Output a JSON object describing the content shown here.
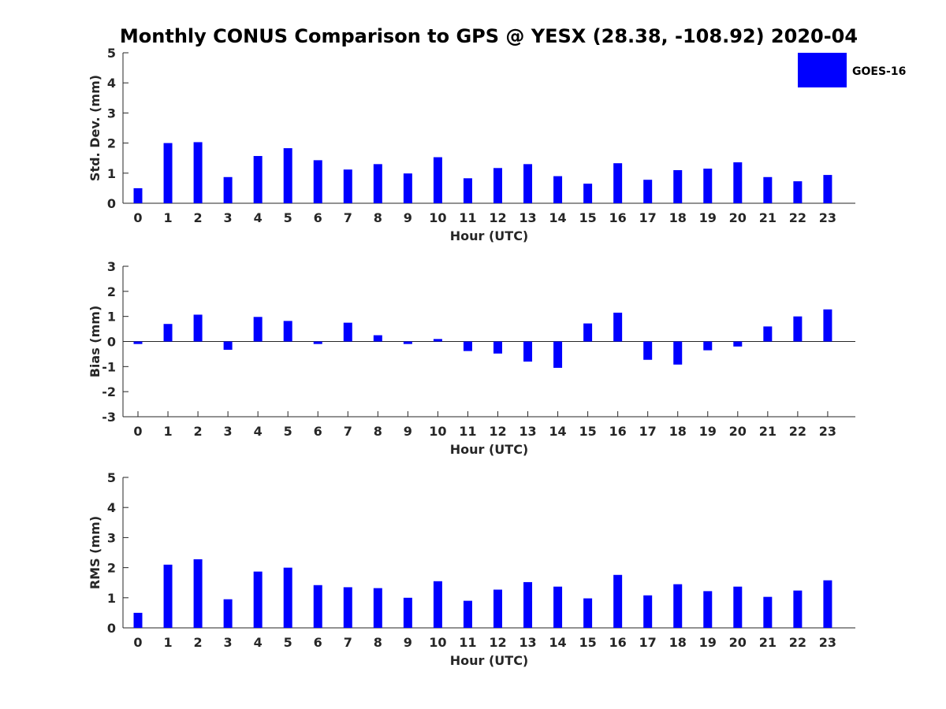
{
  "chart_data": {
    "type": "bar",
    "title": "Monthly CONUS Comparison to GPS @ YESX (28.38, -108.92) 2020-04",
    "legend": {
      "labels": [
        "GOES-16"
      ],
      "color": "#0000ff",
      "position": "top-right"
    },
    "categories": [
      "0",
      "1",
      "2",
      "3",
      "4",
      "5",
      "6",
      "7",
      "8",
      "9",
      "10",
      "11",
      "12",
      "13",
      "14",
      "15",
      "16",
      "17",
      "18",
      "19",
      "20",
      "21",
      "22",
      "23"
    ],
    "subplots": [
      {
        "name": "std-dev",
        "ylabel": "Std. Dev. (mm)",
        "xlabel": "Hour (UTC)",
        "ylim": [
          0,
          5
        ],
        "yticks": [
          "0",
          "1",
          "2",
          "3",
          "4",
          "5"
        ],
        "series": [
          {
            "name": "GOES-16",
            "values": [
              0.5,
              2.0,
              2.03,
              0.87,
              1.57,
              1.83,
              1.43,
              1.12,
              1.3,
              0.99,
              1.53,
              0.83,
              1.17,
              1.3,
              0.9,
              0.65,
              1.33,
              0.78,
              1.1,
              1.15,
              1.36,
              0.87,
              0.73,
              0.94
            ]
          }
        ]
      },
      {
        "name": "bias",
        "ylabel": "Bias (mm)",
        "xlabel": "Hour (UTC)",
        "ylim": [
          -3,
          3
        ],
        "yticks": [
          "-3",
          "-2",
          "-1",
          "0",
          "1",
          "2",
          "3"
        ],
        "series": [
          {
            "name": "GOES-16",
            "values": [
              -0.1,
              0.7,
              1.07,
              -0.33,
              0.98,
              0.82,
              -0.1,
              0.75,
              0.25,
              -0.1,
              0.1,
              -0.38,
              -0.48,
              -0.8,
              -1.05,
              0.72,
              1.15,
              -0.73,
              -0.92,
              -0.35,
              -0.2,
              0.6,
              1.0,
              1.28
            ]
          }
        ]
      },
      {
        "name": "rms",
        "ylabel": "RMS (mm)",
        "xlabel": "Hour (UTC)",
        "ylim": [
          0,
          5
        ],
        "yticks": [
          "0",
          "1",
          "2",
          "3",
          "4",
          "5"
        ],
        "series": [
          {
            "name": "GOES-16",
            "values": [
              0.5,
              2.1,
              2.28,
              0.95,
              1.87,
              2.0,
              1.42,
              1.35,
              1.32,
              1.0,
              1.55,
              0.9,
              1.27,
              1.52,
              1.37,
              0.98,
              1.76,
              1.08,
              1.45,
              1.22,
              1.37,
              1.03,
              1.24,
              1.58
            ]
          }
        ]
      }
    ]
  }
}
